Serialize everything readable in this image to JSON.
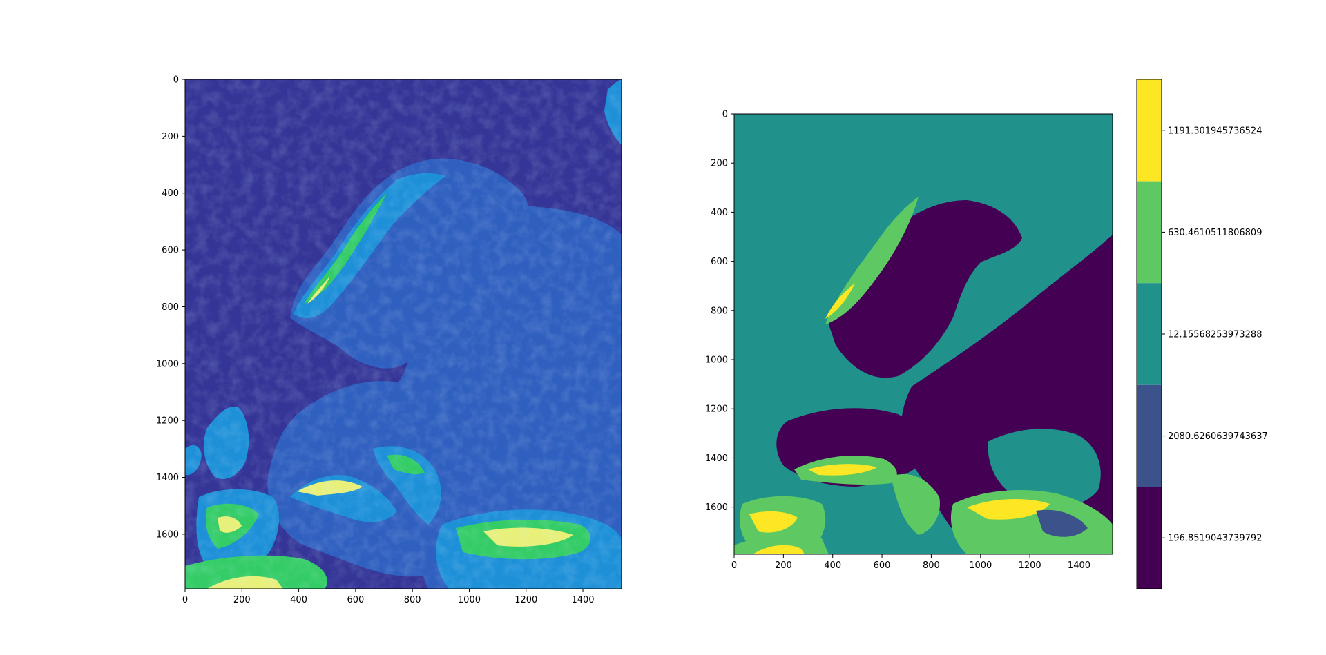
{
  "chart_data": [
    {
      "type": "heatmap",
      "title": "",
      "xlabel": "",
      "ylabel": "",
      "xlim": [
        0,
        1536
      ],
      "ylim": [
        1792,
        0
      ],
      "x_ticks": [
        "0",
        "200",
        "400",
        "600",
        "800",
        "1000",
        "1200",
        "1400"
      ],
      "x_tick_values": [
        0,
        200,
        400,
        600,
        800,
        1000,
        1200,
        1400
      ],
      "y_ticks": [
        "0",
        "200",
        "400",
        "600",
        "800",
        "1000",
        "1200",
        "1400",
        "1600"
      ],
      "y_tick_values": [
        0,
        200,
        400,
        600,
        800,
        1000,
        1200,
        1400,
        1600
      ],
      "colormap": "terrain",
      "grid": false,
      "colors": {
        "sea": "#353597",
        "lowland": "#2f5fbf",
        "upland": "#1e90d8",
        "mid": "#33cc66",
        "high": "#e8f078",
        "peak": "#b09070"
      }
    },
    {
      "type": "heatmap",
      "title": "",
      "xlabel": "",
      "ylabel": "",
      "xlim": [
        0,
        1536
      ],
      "ylim": [
        1792,
        0
      ],
      "x_ticks": [
        "0",
        "200",
        "400",
        "600",
        "800",
        "1000",
        "1200",
        "1400"
      ],
      "x_tick_values": [
        0,
        200,
        400,
        600,
        800,
        1000,
        1200,
        1400
      ],
      "y_ticks": [
        "0",
        "200",
        "400",
        "600",
        "800",
        "1000",
        "1200",
        "1400",
        "1600"
      ],
      "y_tick_values": [
        0,
        200,
        400,
        600,
        800,
        1000,
        1200,
        1400,
        1600
      ],
      "colormap": "viridis-discrete",
      "grid": false,
      "legend": "colorbar-right",
      "colorbar": {
        "categories": [
          "1191.301945736524",
          "630.4610511806809",
          "12.15568253973288",
          "2080.6260639743637",
          "196.8519043739792"
        ],
        "colors": [
          "#fde725",
          "#5ec962",
          "#21918c",
          "#3b528b",
          "#440154"
        ]
      }
    }
  ]
}
